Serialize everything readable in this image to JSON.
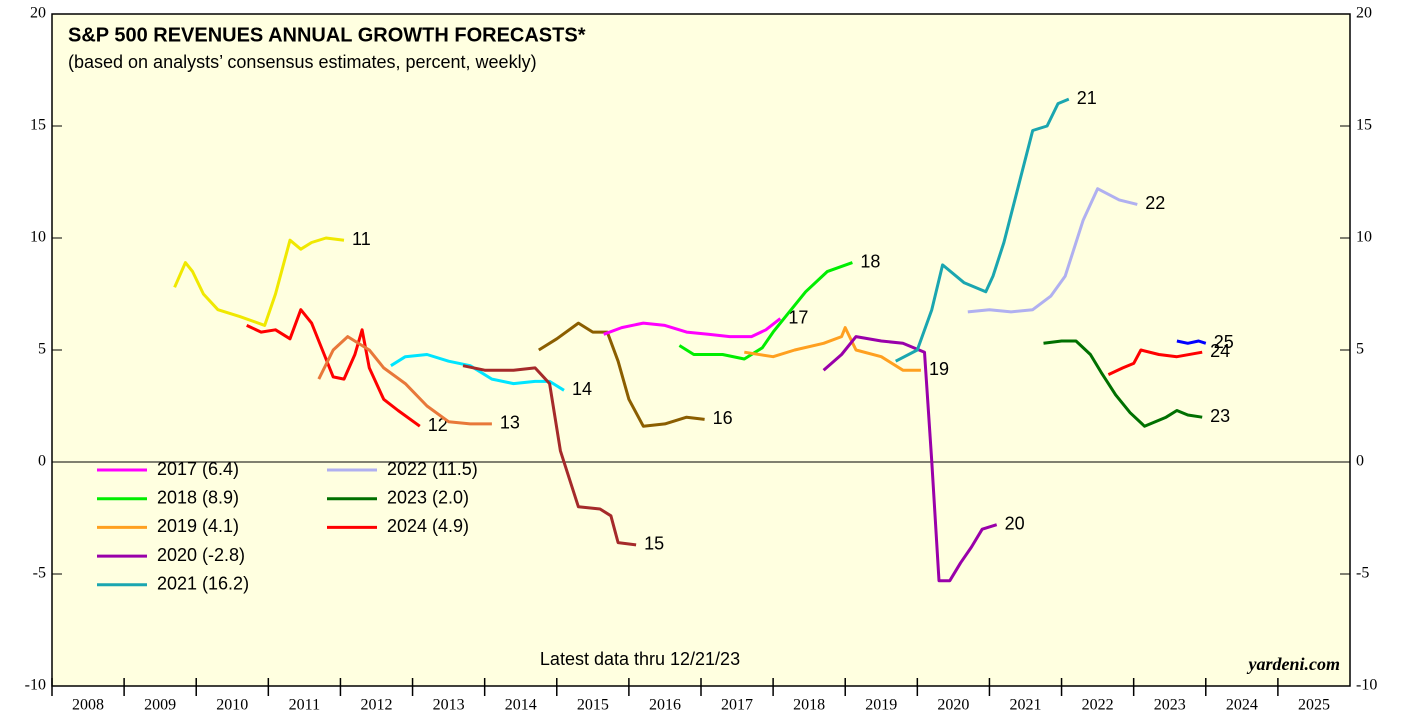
{
  "chart_data": {
    "type": "line",
    "title": "S&P 500 REVENUES ANNUAL GROWTH FORECASTS*",
    "subtitle": "(based on analysts’ consensus estimates, percent, weekly)",
    "note": "Latest data thru 12/21/23",
    "source": "yardeni.com",
    "xlim": [
      2008,
      2026
    ],
    "xticks": [
      2008,
      2009,
      2010,
      2011,
      2012,
      2013,
      2014,
      2015,
      2016,
      2017,
      2018,
      2019,
      2020,
      2021,
      2022,
      2023,
      2024,
      2025
    ],
    "ylim": [
      -10,
      20
    ],
    "yticks": [
      -10,
      -5,
      0,
      5,
      10,
      15,
      20
    ],
    "series": [
      {
        "label": "11",
        "color": "#f0e800",
        "x": [
          2009.7,
          2009.85,
          2009.95,
          2010.1,
          2010.3,
          2010.6,
          2010.95,
          2011.1,
          2011.3,
          2011.45,
          2011.6,
          2011.8,
          2012.05
        ],
        "values": [
          7.8,
          8.9,
          8.5,
          7.5,
          6.8,
          6.5,
          6.1,
          7.5,
          9.9,
          9.5,
          9.8,
          10.0,
          9.9
        ]
      },
      {
        "label": "12",
        "color": "#ff0000",
        "x": [
          2010.7,
          2010.9,
          2011.1,
          2011.3,
          2011.45,
          2011.6,
          2011.75,
          2011.9,
          2012.05,
          2012.2,
          2012.3,
          2012.4,
          2012.6,
          2012.8,
          2013.1
        ],
        "values": [
          6.1,
          5.8,
          5.9,
          5.5,
          6.8,
          6.2,
          5.0,
          3.8,
          3.7,
          4.8,
          5.9,
          4.2,
          2.8,
          2.3,
          1.6
        ]
      },
      {
        "label": "13",
        "color": "#e8783a",
        "x": [
          2011.7,
          2011.9,
          2012.1,
          2012.4,
          2012.6,
          2012.9,
          2013.2,
          2013.5,
          2013.8,
          2014.1
        ],
        "values": [
          3.7,
          5.0,
          5.6,
          5.0,
          4.2,
          3.5,
          2.5,
          1.8,
          1.7,
          1.7
        ]
      },
      {
        "label": "14",
        "color": "#00e5ff",
        "x": [
          2012.7,
          2012.9,
          2013.2,
          2013.5,
          2013.8,
          2014.1,
          2014.4,
          2014.7,
          2014.9,
          2015.1
        ],
        "values": [
          4.3,
          4.7,
          4.8,
          4.5,
          4.3,
          3.7,
          3.5,
          3.6,
          3.6,
          3.2
        ]
      },
      {
        "label": "15",
        "color": "#a52a2a",
        "x": [
          2013.7,
          2014.0,
          2014.4,
          2014.7,
          2014.9,
          2015.05,
          2015.2,
          2015.3,
          2015.6,
          2015.75,
          2015.85,
          2016.1
        ],
        "values": [
          4.3,
          4.1,
          4.1,
          4.2,
          3.5,
          0.5,
          -1.0,
          -2.0,
          -2.1,
          -2.4,
          -3.6,
          -3.7
        ]
      },
      {
        "label": "16",
        "color": "#8b5e00",
        "x": [
          2014.75,
          2015.0,
          2015.3,
          2015.5,
          2015.7,
          2015.85,
          2016.0,
          2016.2,
          2016.5,
          2016.8,
          2017.05
        ],
        "values": [
          5.0,
          5.5,
          6.2,
          5.8,
          5.8,
          4.5,
          2.8,
          1.6,
          1.7,
          2.0,
          1.9
        ]
      },
      {
        "name": "2017 (6.4)",
        "label": "17",
        "color": "#ff00ff",
        "x": [
          2015.65,
          2015.9,
          2016.2,
          2016.5,
          2016.8,
          2017.1,
          2017.4,
          2017.7,
          2017.9,
          2018.1
        ],
        "values": [
          5.7,
          6.0,
          6.2,
          6.1,
          5.8,
          5.7,
          5.6,
          5.6,
          5.9,
          6.4
        ]
      },
      {
        "name": "2018 (8.9)",
        "label": "18",
        "color": "#00ee00",
        "x": [
          2016.7,
          2016.9,
          2017.3,
          2017.6,
          2017.85,
          2018.0,
          2018.2,
          2018.45,
          2018.75,
          2019.1
        ],
        "values": [
          5.2,
          4.8,
          4.8,
          4.6,
          5.1,
          5.8,
          6.6,
          7.6,
          8.5,
          8.9
        ]
      },
      {
        "name": "2019 (4.1)",
        "label": "19",
        "color": "#ffa020",
        "x": [
          2017.6,
          2018.0,
          2018.3,
          2018.7,
          2018.95,
          2019.0,
          2019.15,
          2019.5,
          2019.8,
          2020.05
        ],
        "values": [
          4.9,
          4.7,
          5.0,
          5.3,
          5.6,
          6.0,
          5.0,
          4.7,
          4.1,
          4.1
        ]
      },
      {
        "name": "2020 (-2.8)",
        "label": "20",
        "color": "#9900aa",
        "x": [
          2018.7,
          2018.95,
          2019.15,
          2019.5,
          2019.8,
          2020.1,
          2020.2,
          2020.3,
          2020.45,
          2020.6,
          2020.75,
          2020.9,
          2021.1
        ],
        "values": [
          4.1,
          4.8,
          5.6,
          5.4,
          5.3,
          4.9,
          0.0,
          -5.3,
          -5.3,
          -4.5,
          -3.8,
          -3.0,
          -2.8
        ]
      },
      {
        "name": "2021 (16.2)",
        "label": "21",
        "color": "#1aa6b0",
        "x": [
          2019.7,
          2020.0,
          2020.2,
          2020.35,
          2020.65,
          2020.95,
          2021.05,
          2021.2,
          2021.4,
          2021.6,
          2021.8,
          2021.95,
          2022.1
        ],
        "values": [
          4.5,
          5.0,
          6.8,
          8.8,
          8.0,
          7.6,
          8.3,
          9.8,
          12.3,
          14.8,
          15.0,
          16.0,
          16.2
        ]
      },
      {
        "name": "2022 (11.5)",
        "label": "22",
        "color": "#b0b0f0",
        "x": [
          2020.7,
          2021.0,
          2021.3,
          2021.6,
          2021.85,
          2022.05,
          2022.3,
          2022.5,
          2022.8,
          2023.05
        ],
        "values": [
          6.7,
          6.8,
          6.7,
          6.8,
          7.4,
          8.3,
          10.8,
          12.2,
          11.7,
          11.5
        ]
      },
      {
        "name": "2023 (2.0)",
        "label": "23",
        "color": "#007000",
        "x": [
          2021.75,
          2022.0,
          2022.2,
          2022.4,
          2022.55,
          2022.75,
          2022.95,
          2023.15,
          2023.45,
          2023.6,
          2023.75,
          2023.95
        ],
        "values": [
          5.3,
          5.4,
          5.4,
          4.8,
          4.0,
          3.0,
          2.2,
          1.6,
          2.0,
          2.3,
          2.1,
          2.0
        ]
      },
      {
        "name": "2024 (4.9)",
        "label": "24",
        "color": "#ff0000",
        "x": [
          2022.65,
          2022.85,
          2023.0,
          2023.1,
          2023.35,
          2023.6,
          2023.95
        ],
        "values": [
          3.9,
          4.2,
          4.4,
          5.0,
          4.8,
          4.7,
          4.9
        ]
      },
      {
        "label": "25",
        "color": "#0000ff",
        "x": [
          2023.6,
          2023.75,
          2023.9,
          2024.0
        ],
        "values": [
          5.4,
          5.3,
          5.4,
          5.3
        ]
      }
    ]
  }
}
